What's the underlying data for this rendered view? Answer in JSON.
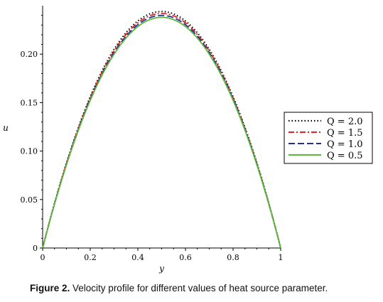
{
  "chart_data": {
    "type": "line",
    "title": "",
    "xlabel": "y",
    "ylabel": "u",
    "xlim": [
      0,
      1
    ],
    "ylim": [
      0,
      0.25
    ],
    "xticks": [
      0,
      0.2,
      0.4,
      0.6,
      0.8,
      1
    ],
    "xtick_labels": [
      "0",
      "0.2",
      "0.4",
      "0.6",
      "0.8",
      "1"
    ],
    "yticks": [
      0,
      0.05,
      0.1,
      0.15,
      0.2
    ],
    "ytick_labels": [
      "0",
      "0.05",
      "0.10",
      "0.15",
      "0.20"
    ],
    "grid": false,
    "legend_position": "right",
    "x": [
      0,
      0.1,
      0.2,
      0.3,
      0.4,
      0.5,
      0.6,
      0.7,
      0.8,
      0.9,
      1.0
    ],
    "series": [
      {
        "name": "Q = 2.0",
        "color": "#000000",
        "style": "dotted",
        "peak": 0.244,
        "values": [
          0,
          0.0878,
          0.1562,
          0.205,
          0.2343,
          0.244,
          0.2343,
          0.205,
          0.1562,
          0.0878,
          0
        ]
      },
      {
        "name": "Q = 1.5",
        "color": "#e8221b",
        "style": "dashdot",
        "peak": 0.242,
        "values": [
          0,
          0.0871,
          0.1549,
          0.2033,
          0.2323,
          0.242,
          0.2323,
          0.2033,
          0.1549,
          0.0871,
          0
        ]
      },
      {
        "name": "Q = 1.0",
        "color": "#1f2fa0",
        "style": "dashed",
        "peak": 0.24,
        "values": [
          0,
          0.0864,
          0.1536,
          0.2016,
          0.2304,
          0.24,
          0.2304,
          0.2016,
          0.1536,
          0.0864,
          0
        ]
      },
      {
        "name": "Q = 0.5",
        "color": "#5cb83a",
        "style": "solid",
        "peak": 0.238,
        "values": [
          0,
          0.0857,
          0.1523,
          0.1999,
          0.2285,
          0.238,
          0.2285,
          0.1999,
          0.1523,
          0.0857,
          0
        ]
      }
    ]
  },
  "caption": {
    "label": "Figure 2.",
    "text": "Velocity profile for different values of heat source parameter."
  }
}
